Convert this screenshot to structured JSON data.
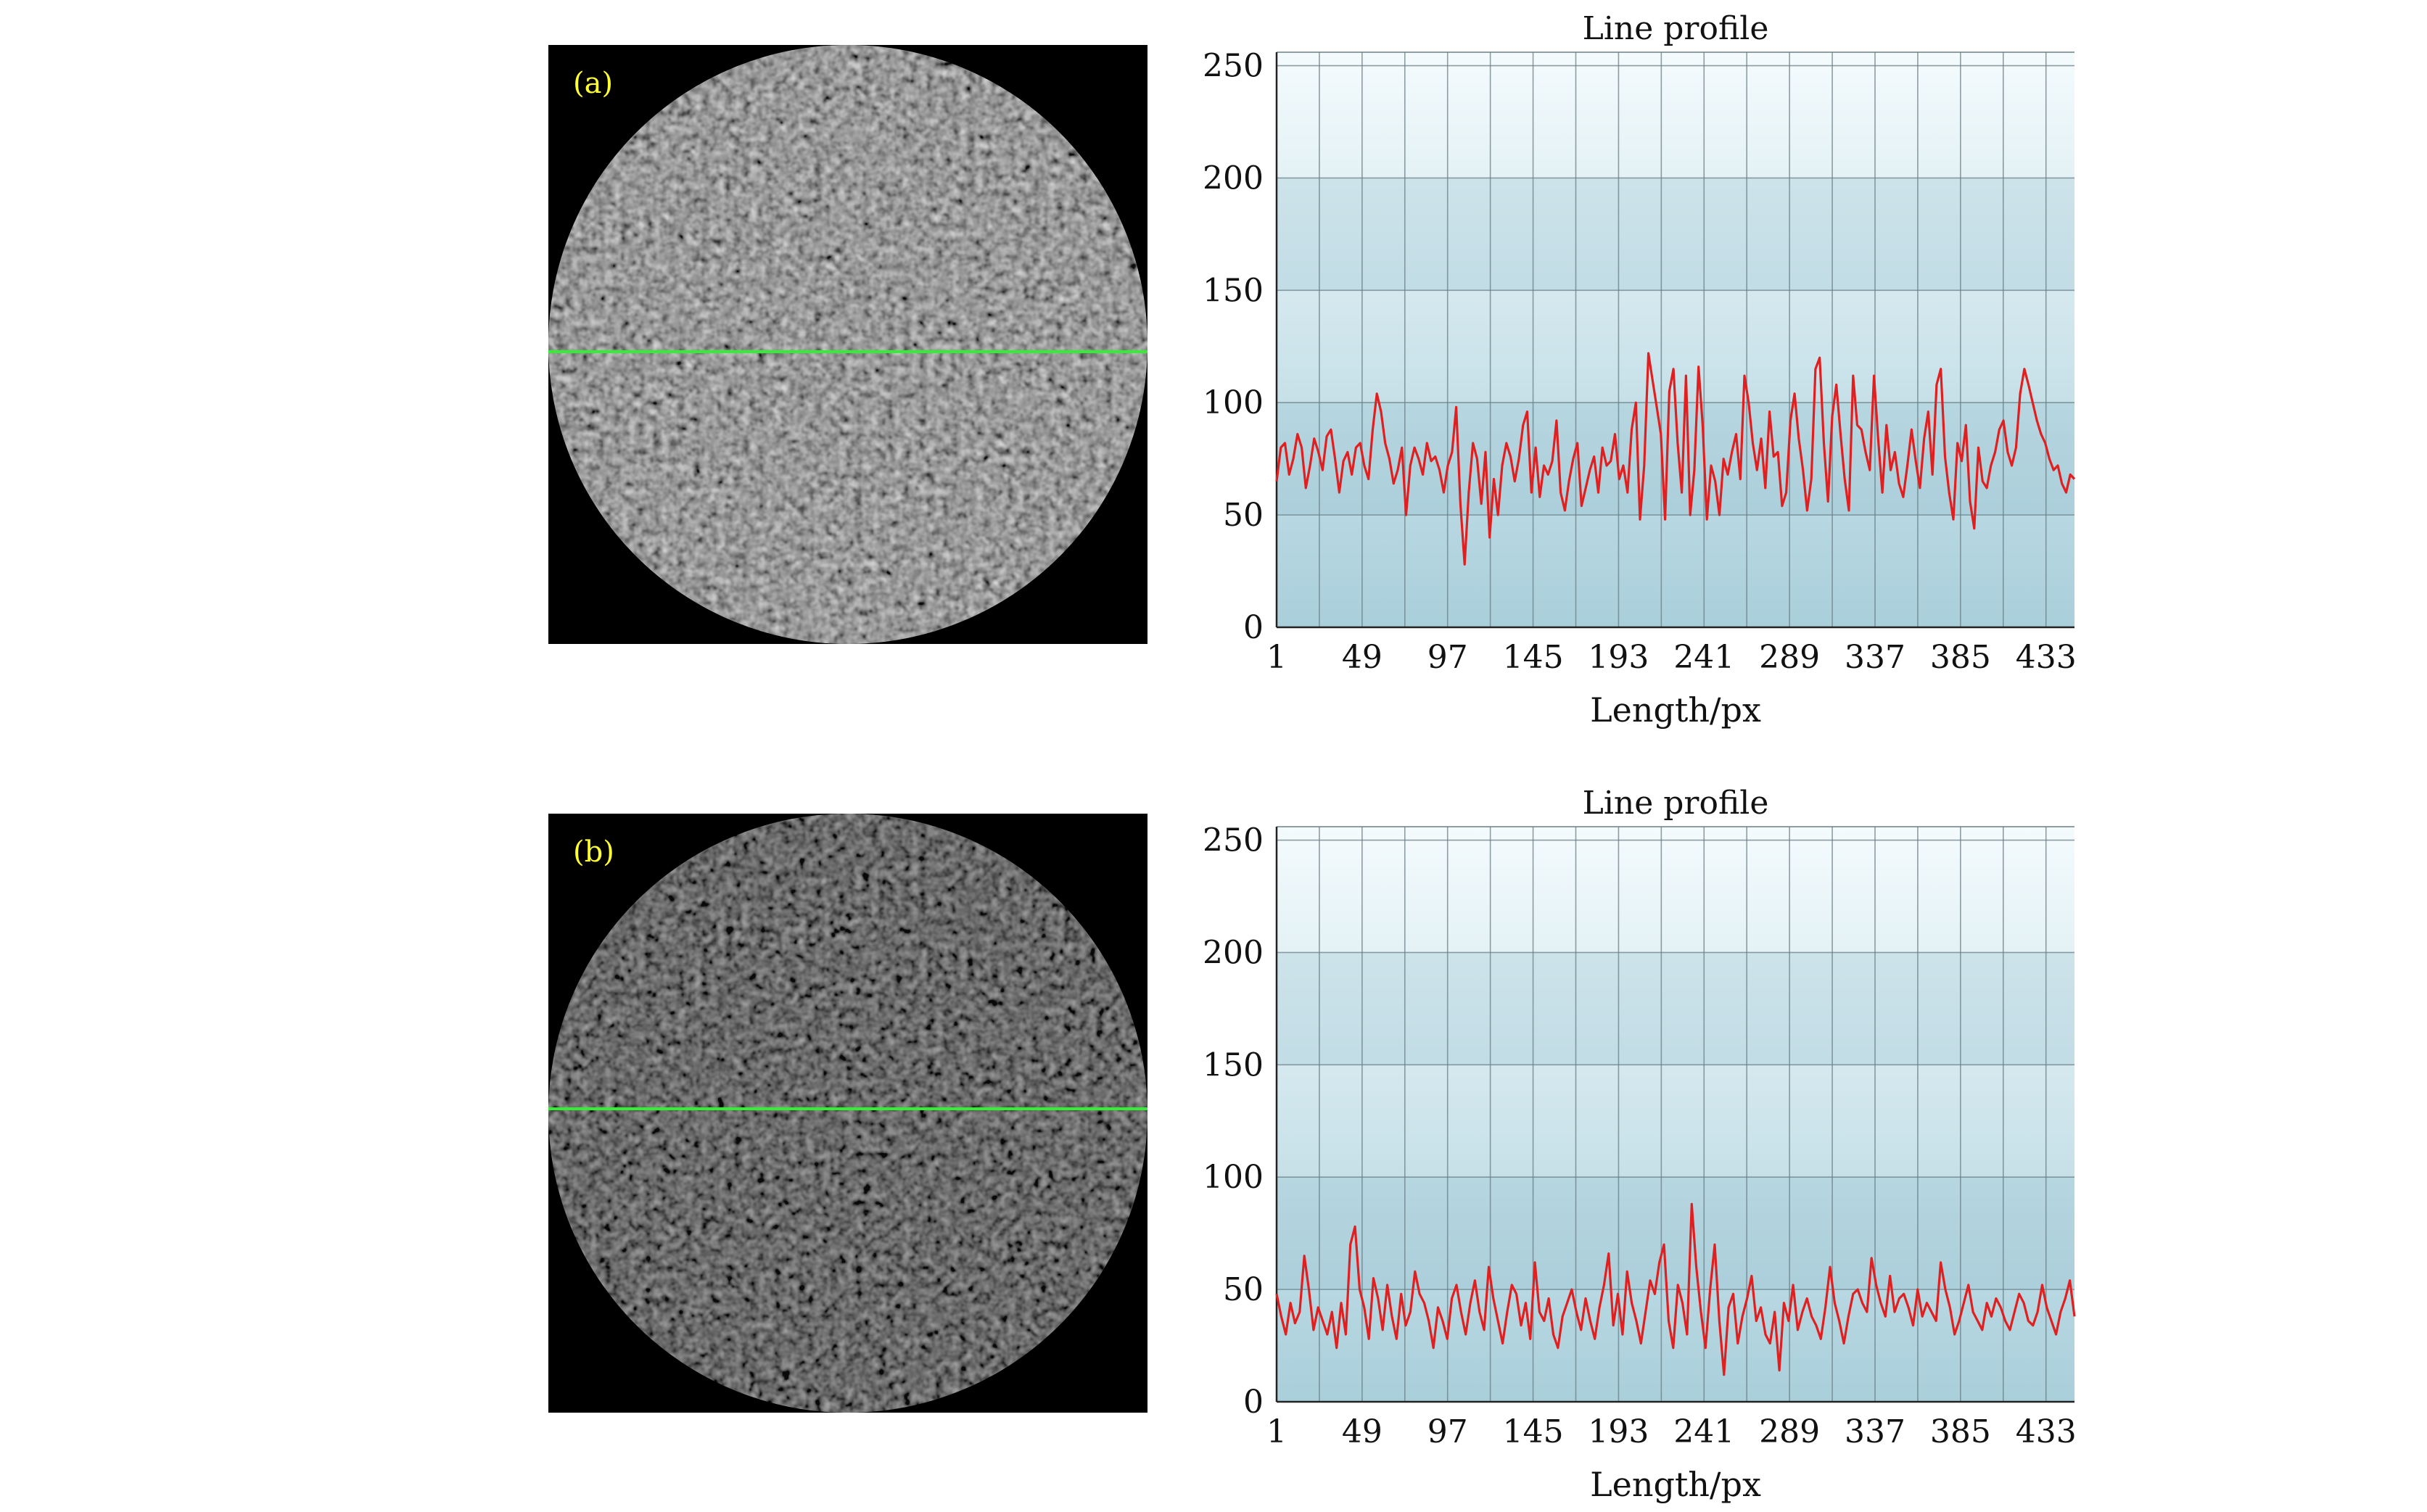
{
  "panels": [
    {
      "label": "(a)"
    },
    {
      "label": "(b)"
    }
  ],
  "colors": {
    "profile_line": "#e02020",
    "scan_line": "#33ee33",
    "panel_label": "#ffff33",
    "chart_bg_top": "#f4fbfd",
    "chart_bg_bottom": "#a9cfdb"
  },
  "chart_data": [
    {
      "type": "line",
      "title": "Line profile",
      "xlabel": "Length/px",
      "ylabel": "",
      "xlim": [
        1,
        449
      ],
      "ylim": [
        0,
        256
      ],
      "xticks": [
        1,
        49,
        97,
        145,
        193,
        241,
        289,
        337,
        385,
        433
      ],
      "yticks": [
        0,
        50,
        100,
        150,
        200,
        250
      ],
      "grid": true,
      "series": [
        {
          "values": [
            65,
            80,
            82,
            68,
            75,
            86,
            80,
            62,
            72,
            84,
            78,
            70,
            85,
            88,
            75,
            60,
            74,
            78,
            68,
            80,
            82,
            72,
            66,
            88,
            104,
            96,
            82,
            75,
            64,
            70,
            80,
            50,
            72,
            80,
            75,
            68,
            82,
            74,
            76,
            70,
            60,
            72,
            78,
            98,
            55,
            28,
            60,
            82,
            75,
            55,
            78,
            40,
            66,
            50,
            72,
            82,
            76,
            65,
            75,
            90,
            96,
            60,
            80,
            58,
            72,
            68,
            74,
            92,
            60,
            52,
            65,
            75,
            82,
            54,
            62,
            70,
            76,
            60,
            80,
            72,
            74,
            86,
            66,
            72,
            60,
            88,
            100,
            48,
            72,
            122,
            110,
            98,
            86,
            48,
            105,
            115,
            82,
            60,
            112,
            50,
            70,
            116,
            90,
            48,
            72,
            65,
            50,
            75,
            68,
            78,
            86,
            66,
            112,
            100,
            82,
            70,
            84,
            62,
            96,
            76,
            78,
            54,
            60,
            92,
            104,
            84,
            70,
            52,
            66,
            115,
            120,
            82,
            56,
            94,
            108,
            86,
            66,
            52,
            112,
            90,
            88,
            78,
            70,
            112,
            84,
            60,
            90,
            70,
            78,
            64,
            58,
            72,
            88,
            74,
            62,
            84,
            96,
            68,
            108,
            115,
            76,
            60,
            48,
            82,
            74,
            90,
            56,
            44,
            80,
            65,
            62,
            72,
            78,
            88,
            92,
            78,
            72,
            80,
            104,
            115,
            108,
            100,
            92,
            86,
            82,
            75,
            70,
            72,
            64,
            60,
            68,
            66
          ]
        }
      ]
    },
    {
      "type": "line",
      "title": "Line profile",
      "xlabel": "Length/px",
      "ylabel": "",
      "xlim": [
        1,
        449
      ],
      "ylim": [
        0,
        256
      ],
      "xticks": [
        1,
        49,
        97,
        145,
        193,
        241,
        289,
        337,
        385,
        433
      ],
      "yticks": [
        0,
        50,
        100,
        150,
        200,
        250
      ],
      "grid": true,
      "series": [
        {
          "values": [
            48,
            38,
            30,
            44,
            35,
            40,
            65,
            50,
            32,
            42,
            36,
            30,
            40,
            24,
            44,
            30,
            70,
            78,
            50,
            42,
            28,
            55,
            46,
            32,
            52,
            38,
            28,
            48,
            34,
            40,
            58,
            48,
            44,
            36,
            24,
            42,
            36,
            28,
            46,
            52,
            40,
            30,
            44,
            54,
            40,
            32,
            60,
            46,
            36,
            26,
            40,
            52,
            48,
            34,
            44,
            28,
            62,
            40,
            36,
            46,
            30,
            24,
            38,
            44,
            50,
            40,
            32,
            46,
            36,
            28,
            42,
            52,
            66,
            34,
            48,
            30,
            58,
            44,
            36,
            26,
            40,
            54,
            48,
            62,
            70,
            36,
            24,
            52,
            44,
            30,
            88,
            60,
            40,
            24,
            50,
            70,
            36,
            12,
            42,
            48,
            26,
            38,
            46,
            56,
            36,
            42,
            30,
            26,
            40,
            14,
            44,
            36,
            52,
            32,
            40,
            46,
            38,
            34,
            28,
            42,
            60,
            44,
            36,
            26,
            38,
            48,
            50,
            44,
            40,
            64,
            52,
            44,
            38,
            56,
            40,
            46,
            48,
            42,
            34,
            50,
            38,
            44,
            40,
            36,
            62,
            50,
            42,
            30,
            36,
            44,
            52,
            40,
            36,
            32,
            44,
            38,
            46,
            42,
            36,
            32,
            40,
            48,
            44,
            36,
            34,
            40,
            52,
            42,
            36,
            30,
            40,
            46,
            54,
            38
          ]
        }
      ]
    }
  ]
}
